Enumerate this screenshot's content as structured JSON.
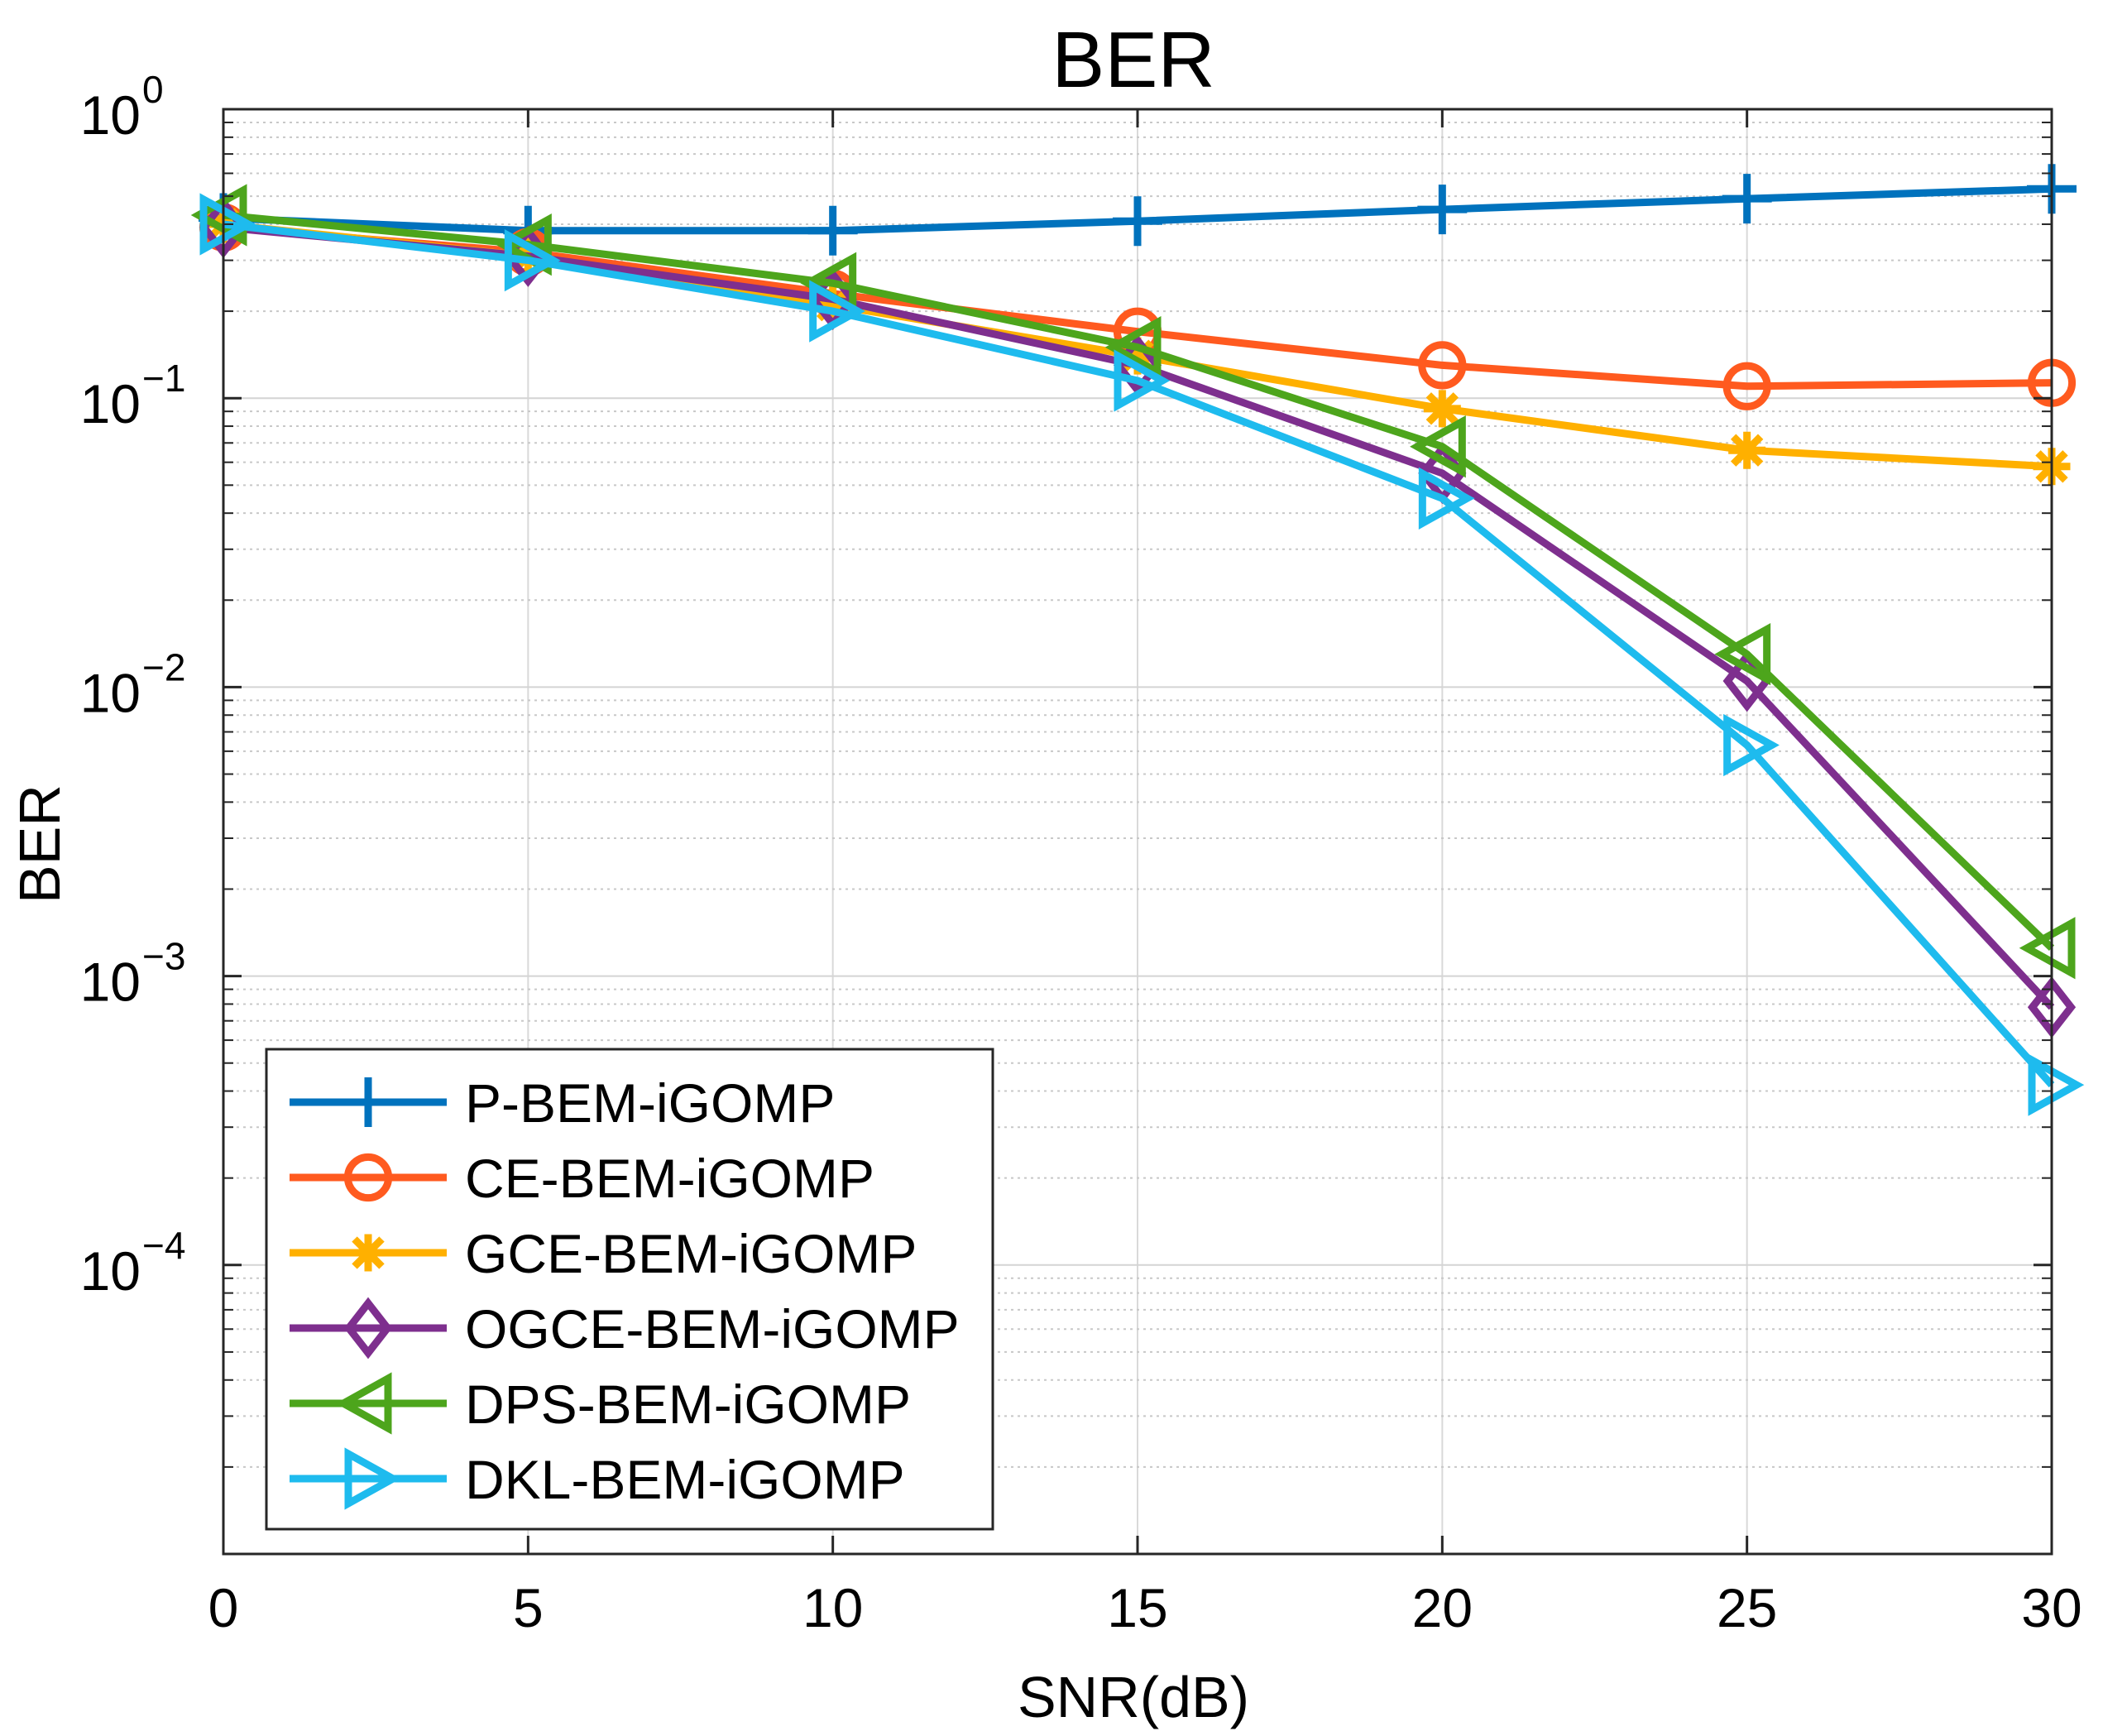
{
  "chart_data": {
    "type": "line",
    "title": "BER",
    "xlabel": "SNR(dB)",
    "ylabel": "BER",
    "yscale": "log",
    "xlim": [
      0,
      30
    ],
    "ylim": [
      1e-05,
      1
    ],
    "grid": true,
    "legend_position": "bottom-left",
    "x": [
      0,
      5,
      10,
      15,
      20,
      25,
      30
    ],
    "x_tick_labels": [
      "0",
      "5",
      "10",
      "15",
      "20",
      "25",
      "30"
    ],
    "y_tick_labels": [
      {
        "base": "10",
        "exp": "0"
      },
      {
        "base": "10",
        "exp": "−1"
      },
      {
        "base": "10",
        "exp": "−2"
      },
      {
        "base": "10",
        "exp": "−3"
      },
      {
        "base": "10",
        "exp": "−4"
      }
    ],
    "series": [
      {
        "name": "P-BEM-iGOMP",
        "color": "#0072BD",
        "marker": "plus",
        "values": [
          0.42,
          0.38,
          0.38,
          0.41,
          0.45,
          0.49,
          0.53
        ]
      },
      {
        "name": "CE-BEM-iGOMP",
        "color": "#FF5A1F",
        "marker": "circle",
        "values": [
          0.39,
          0.32,
          0.23,
          0.17,
          0.13,
          0.11,
          0.113
        ]
      },
      {
        "name": "GCE-BEM-iGOMP",
        "color": "#FFB000",
        "marker": "asterisk",
        "values": [
          0.4,
          0.31,
          0.21,
          0.14,
          0.092,
          0.066,
          0.058
        ]
      },
      {
        "name": "OGCE-BEM-iGOMP",
        "color": "#7E2F8E",
        "marker": "diamond",
        "values": [
          0.39,
          0.31,
          0.22,
          0.13,
          0.055,
          0.0105,
          0.00078
        ]
      },
      {
        "name": "DPS-BEM-iGOMP",
        "color": "#4DA51C",
        "marker": "triangle-left",
        "values": [
          0.43,
          0.34,
          0.25,
          0.15,
          0.068,
          0.013,
          0.00125
        ]
      },
      {
        "name": "DKL-BEM-iGOMP",
        "color": "#1EBBEE",
        "marker": "triangle-right",
        "values": [
          0.4,
          0.3,
          0.2,
          0.115,
          0.045,
          0.0063,
          0.00042
        ]
      }
    ]
  }
}
